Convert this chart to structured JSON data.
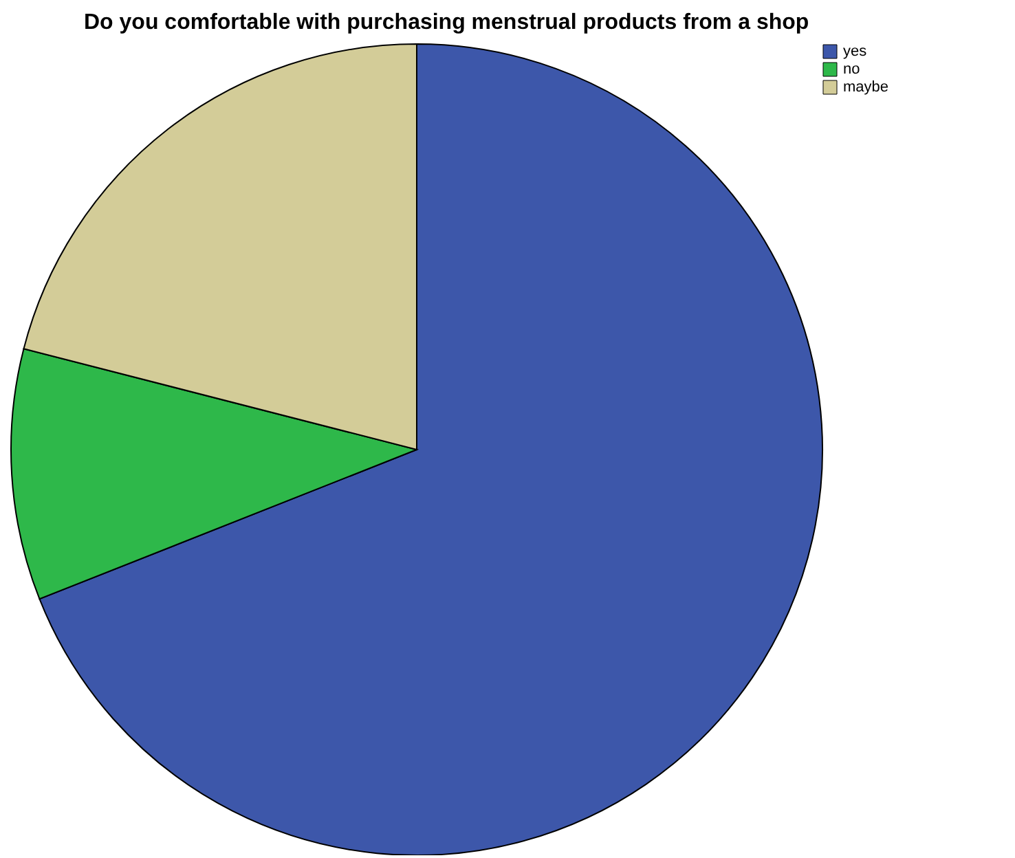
{
  "chart_data": {
    "type": "pie",
    "title": "Do you comfortable with purchasing menstrual products from a shop",
    "categories": [
      "yes",
      "no",
      "maybe"
    ],
    "values": [
      69,
      10,
      21
    ],
    "colors": [
      "#3d57aa",
      "#2eb84a",
      "#d3cc98"
    ],
    "legend": "top right"
  }
}
